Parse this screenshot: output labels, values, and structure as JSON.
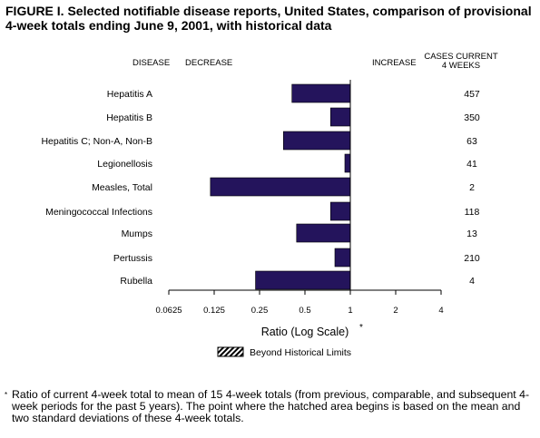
{
  "title": "FIGURE I. Selected notifiable disease reports, United States, comparison of provisional 4-week totals ending June 9, 2001, with historical data",
  "headers": {
    "disease": "DISEASE",
    "decrease": "DECREASE",
    "increase": "INCREASE",
    "cases_line1": "CASES CURRENT",
    "cases_line2": "4 WEEKS"
  },
  "chart_data": {
    "type": "bar",
    "orientation": "horizontal",
    "x_scale": "log2",
    "xlim": [
      0.0625,
      4
    ],
    "xticks": [
      "0.0625",
      "0.125",
      "0.25",
      "0.5",
      "1",
      "2",
      "4"
    ],
    "xlabel": "Ratio (Log Scale)",
    "xlabel_mark": "*",
    "baseline": 1,
    "bar_color": "#24145c",
    "categories": [
      "Hepatitis A",
      "Hepatitis B",
      "Hepatitis C; Non-A, Non-B",
      "Legionellosis",
      "Measles, Total",
      "Meningococcal Infections",
      "Mumps",
      "Pertussis",
      "Rubella"
    ],
    "values": [
      0.41,
      0.74,
      0.36,
      0.92,
      0.118,
      0.74,
      0.44,
      0.79,
      0.235
    ],
    "cases": [
      "457",
      "350",
      "63",
      "41",
      "2",
      "118",
      "13",
      "210",
      "4"
    ],
    "legend": {
      "label": "Beyond Historical Limits",
      "placement": "bottom-center"
    }
  },
  "footnote": {
    "mark": "*",
    "text": "Ratio of current 4-week total to mean of 15 4-week totals (from previous, comparable, and subsequent 4-week periods for the past 5 years). The point where the hatched area begins is based on the mean and two standard deviations of these 4-week totals."
  }
}
